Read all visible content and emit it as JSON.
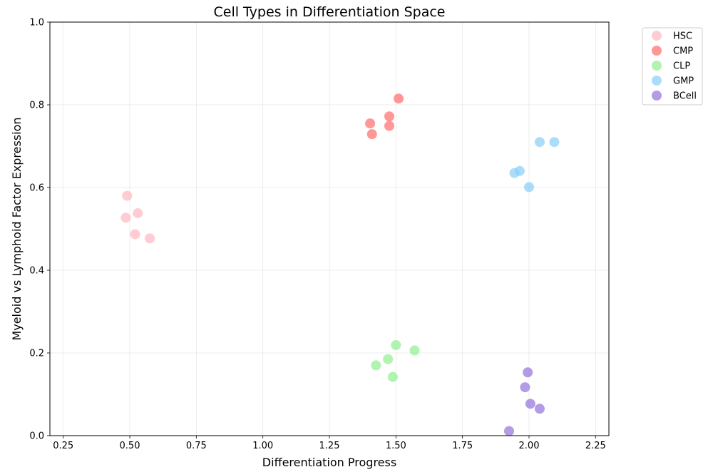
{
  "chart_data": {
    "type": "scatter",
    "title": "Cell Types in Differentiation Space",
    "xlabel": "Differentiation Progress",
    "ylabel": "Myeloid vs Lymphoid Factor Expression",
    "xlim": [
      0.2,
      2.3
    ],
    "ylim": [
      0.0,
      1.0
    ],
    "xticks": [
      0.25,
      0.5,
      0.75,
      1.0,
      1.25,
      1.5,
      1.75,
      2.0,
      2.25
    ],
    "xtick_labels": [
      "0.25",
      "0.50",
      "0.75",
      "1.00",
      "1.25",
      "1.50",
      "1.75",
      "2.00",
      "2.25"
    ],
    "yticks": [
      0.0,
      0.2,
      0.4,
      0.6,
      0.8,
      1.0
    ],
    "ytick_labels": [
      "0.0",
      "0.2",
      "0.4",
      "0.6",
      "0.8",
      "1.0"
    ],
    "grid": true,
    "legend_position": "outside-top-right",
    "series": [
      {
        "name": "HSC",
        "color": "#ffb6c1",
        "points": [
          [
            0.49,
            0.58
          ],
          [
            0.53,
            0.538
          ],
          [
            0.485,
            0.527
          ],
          [
            0.52,
            0.487
          ],
          [
            0.575,
            0.477
          ]
        ]
      },
      {
        "name": "CMP",
        "color": "#ff6b6b",
        "points": [
          [
            1.51,
            0.815
          ],
          [
            1.475,
            0.772
          ],
          [
            1.403,
            0.755
          ],
          [
            1.475,
            0.749
          ],
          [
            1.41,
            0.729
          ]
        ]
      },
      {
        "name": "CLP",
        "color": "#90ee90",
        "points": [
          [
            1.5,
            0.219
          ],
          [
            1.57,
            0.206
          ],
          [
            1.47,
            0.185
          ],
          [
            1.425,
            0.17
          ],
          [
            1.488,
            0.142
          ]
        ]
      },
      {
        "name": "GMP",
        "color": "#87cefa",
        "points": [
          [
            2.04,
            0.71
          ],
          [
            2.095,
            0.71
          ],
          [
            1.965,
            0.64
          ],
          [
            1.945,
            0.635
          ],
          [
            2.0,
            0.601
          ]
        ]
      },
      {
        "name": "BCell",
        "color": "#9370db",
        "points": [
          [
            1.995,
            0.153
          ],
          [
            1.985,
            0.117
          ],
          [
            2.005,
            0.077
          ],
          [
            2.04,
            0.065
          ],
          [
            1.925,
            0.011
          ]
        ]
      }
    ]
  }
}
